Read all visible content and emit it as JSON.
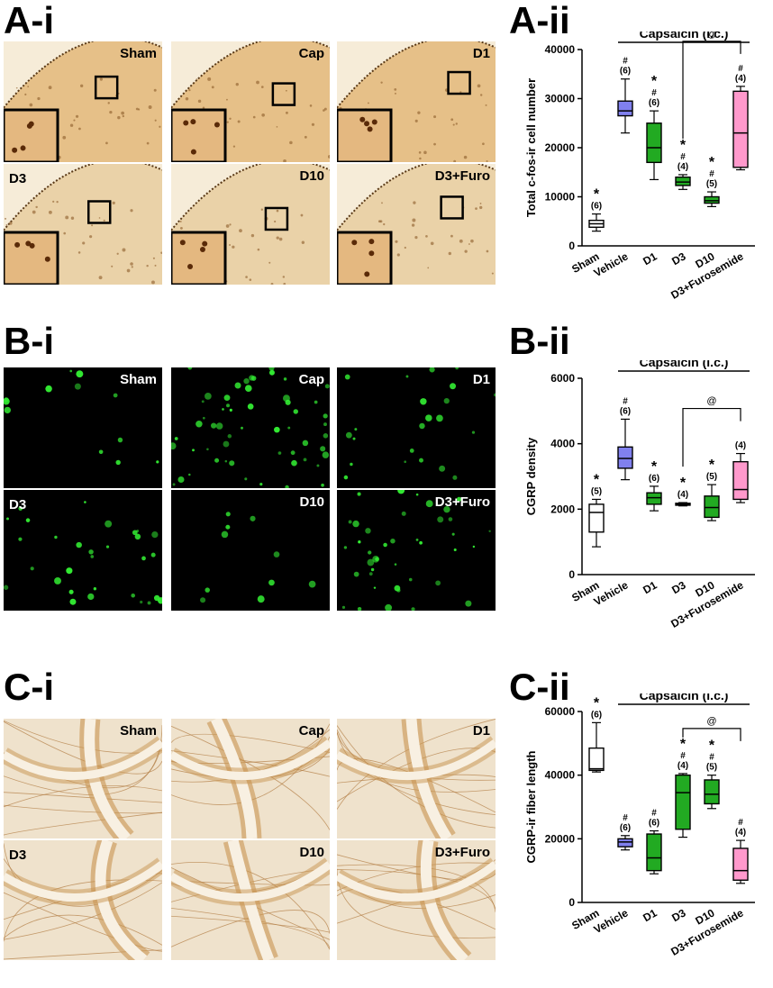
{
  "panels": {
    "a_i": "A-i",
    "a_ii": "A-ii",
    "b_i": "B-i",
    "b_ii": "B-ii",
    "c_i": "C-i",
    "c_ii": "C-ii"
  },
  "image_labels": [
    "Sham",
    "Cap",
    "D1",
    "D3",
    "D10",
    "D3+Furo"
  ],
  "colors": {
    "sham": "#ffffff",
    "vehicle": "#8080ee",
    "d1": "#22aa22",
    "d3": "#22aa22",
    "d10": "#22aa22",
    "furosemide": "#ff99cc",
    "ihc_bg": "#e9c891",
    "fluor_bg": "#000000",
    "fluor_dot": "#33ee33",
    "fiber_bg": "#efe3cf"
  },
  "chart_data": [
    {
      "type": "box",
      "ylabel": "Total c-fos-ir cell number",
      "ylim": [
        0,
        40000
      ],
      "yticks": [
        "0",
        "10000",
        "20000",
        "30000",
        "40000"
      ],
      "bracket_label": "Capsaicin (i.c.)",
      "categories": [
        "Sham",
        "Vehicle",
        "D1",
        "D3",
        "D10",
        "D3+Furosemide"
      ],
      "boxes": [
        {
          "min": 3000,
          "q1": 3800,
          "median": 4500,
          "q3": 5200,
          "max": 6500
        },
        {
          "min": 23000,
          "q1": 26500,
          "median": 27500,
          "q3": 29500,
          "max": 34000
        },
        {
          "min": 13500,
          "q1": 17000,
          "median": 20000,
          "q3": 25000,
          "max": 27500
        },
        {
          "min": 11500,
          "q1": 12300,
          "median": 13000,
          "q3": 14000,
          "max": 14500
        },
        {
          "min": 8000,
          "q1": 8700,
          "median": 9200,
          "q3": 10000,
          "max": 11000
        },
        {
          "min": 15500,
          "q1": 16000,
          "median": 23000,
          "q3": 31500,
          "max": 32500
        }
      ],
      "annotations": [
        {
          "sym": [
            "*",
            "(6)"
          ]
        },
        {
          "sym": [
            "#",
            "(6)"
          ]
        },
        {
          "sym": [
            "*",
            "#",
            "(6)"
          ]
        },
        {
          "sym": [
            "*",
            "#",
            "(4)"
          ]
        },
        {
          "sym": [
            "*",
            "#",
            "(5)"
          ]
        },
        {
          "sym": [
            "#",
            "(4)"
          ]
        }
      ],
      "comparison": {
        "from": 3,
        "to": 5,
        "label": "@"
      }
    },
    {
      "type": "box",
      "ylabel": "CGRP density",
      "ylim": [
        0,
        6000
      ],
      "yticks": [
        "0",
        "2000",
        "4000",
        "6000"
      ],
      "bracket_label": "Capsaicin (i.c.)",
      "categories": [
        "Sham",
        "Vehicle",
        "D1",
        "D3",
        "D10",
        "D3+Furosemide"
      ],
      "boxes": [
        {
          "min": 850,
          "q1": 1300,
          "median": 1900,
          "q3": 2150,
          "max": 2300
        },
        {
          "min": 2900,
          "q1": 3250,
          "median": 3550,
          "q3": 3900,
          "max": 4750
        },
        {
          "min": 1950,
          "q1": 2150,
          "median": 2350,
          "q3": 2500,
          "max": 2700
        },
        {
          "min": 2100,
          "q1": 2120,
          "median": 2150,
          "q3": 2180,
          "max": 2200
        },
        {
          "min": 1650,
          "q1": 1750,
          "median": 2050,
          "q3": 2400,
          "max": 2750
        },
        {
          "min": 2200,
          "q1": 2300,
          "median": 2600,
          "q3": 3450,
          "max": 3700
        }
      ],
      "annotations": [
        {
          "sym": [
            "*",
            "(5)"
          ]
        },
        {
          "sym": [
            "#",
            "(6)"
          ]
        },
        {
          "sym": [
            "*",
            "(6)"
          ]
        },
        {
          "sym": [
            "*",
            "(4)"
          ]
        },
        {
          "sym": [
            "*",
            "(5)"
          ]
        },
        {
          "sym": [
            "(4)"
          ]
        }
      ],
      "comparison": {
        "from": 3,
        "to": 5,
        "label": "@"
      }
    },
    {
      "type": "box",
      "ylabel": "CGRP-ir fiber length",
      "ylim": [
        0,
        60000
      ],
      "yticks": [
        "0",
        "20000",
        "40000",
        "60000"
      ],
      "bracket_label": "Capsaicin (i.c.)",
      "categories": [
        "Sham",
        "Vehicle",
        "D1",
        "D3",
        "D10",
        "D3+Furosemide"
      ],
      "boxes": [
        {
          "min": 41000,
          "q1": 41500,
          "median": 42000,
          "q3": 48500,
          "max": 56500
        },
        {
          "min": 16500,
          "q1": 17500,
          "median": 19000,
          "q3": 20000,
          "max": 21000
        },
        {
          "min": 9000,
          "q1": 10000,
          "median": 14000,
          "q3": 21500,
          "max": 22500
        },
        {
          "min": 20500,
          "q1": 23000,
          "median": 34500,
          "q3": 40000,
          "max": 40500
        },
        {
          "min": 29500,
          "q1": 31000,
          "median": 34000,
          "q3": 38500,
          "max": 40000
        },
        {
          "min": 6000,
          "q1": 7000,
          "median": 10000,
          "q3": 17000,
          "max": 19500
        }
      ],
      "annotations": [
        {
          "sym": [
            "*",
            "(6)"
          ]
        },
        {
          "sym": [
            "#",
            "(6)"
          ]
        },
        {
          "sym": [
            "#",
            "(6)"
          ]
        },
        {
          "sym": [
            "*",
            "#",
            "(4)"
          ]
        },
        {
          "sym": [
            "*",
            "#",
            "(5)"
          ]
        },
        {
          "sym": [
            "#",
            "(4)"
          ]
        }
      ],
      "comparison": {
        "from": 3,
        "to": 5,
        "label": "@"
      }
    }
  ]
}
